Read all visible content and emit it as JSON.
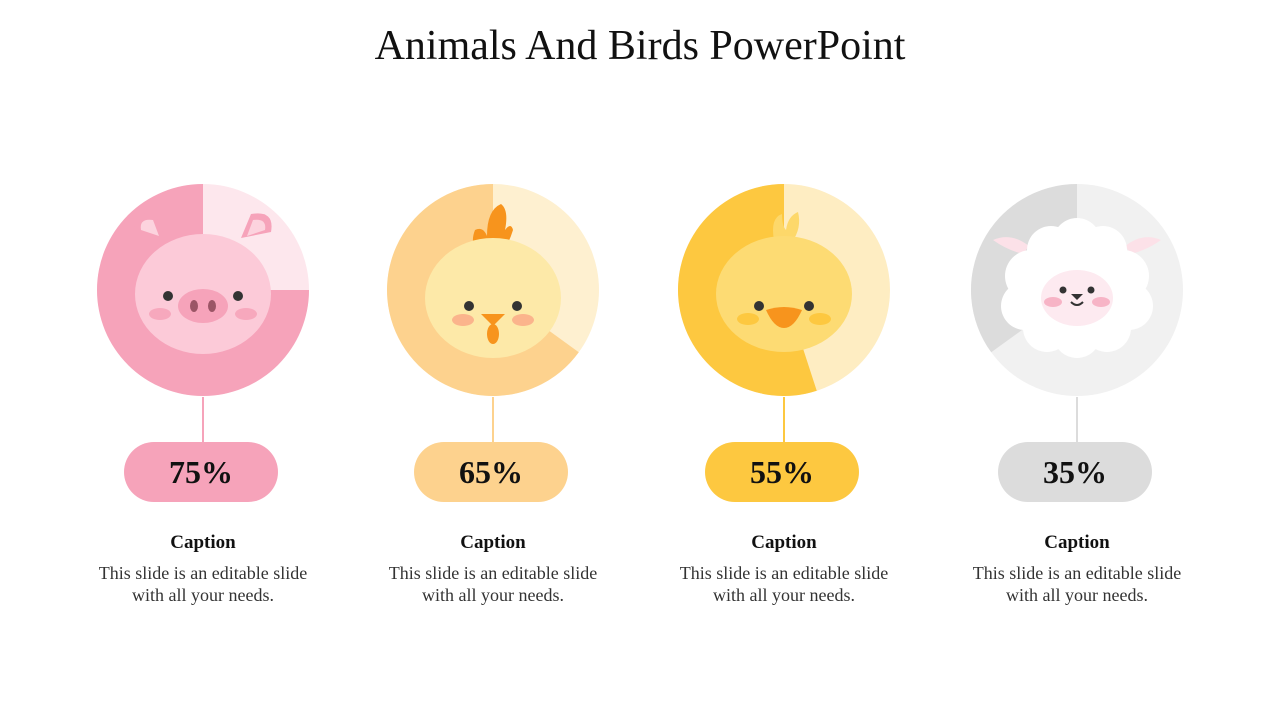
{
  "title": "Animals And Birds PowerPoint",
  "items": [
    {
      "animal": "pig-icon",
      "percent": "75%",
      "value": 75,
      "caption": "Caption",
      "text": "This slide is an editable slide with all your needs.",
      "color": "#F6A3BA",
      "light": "#FDE7ED"
    },
    {
      "animal": "rooster-icon",
      "percent": "65%",
      "value": 65,
      "caption": "Caption",
      "text": "This slide is an editable slide with all your needs.",
      "color": "#FDD28E",
      "light": "#FEF0D0"
    },
    {
      "animal": "chick-icon",
      "percent": "55%",
      "value": 55,
      "caption": "Caption",
      "text": "This slide is an editable slide with all your needs.",
      "color": "#FDC840",
      "light": "#FEEDC2"
    },
    {
      "animal": "sheep-icon",
      "percent": "35%",
      "value": 35,
      "caption": "Caption",
      "text": "This slide is an editable slide with all your needs.",
      "color": "#DCDCDC",
      "light": "#F1F1F1"
    }
  ]
}
